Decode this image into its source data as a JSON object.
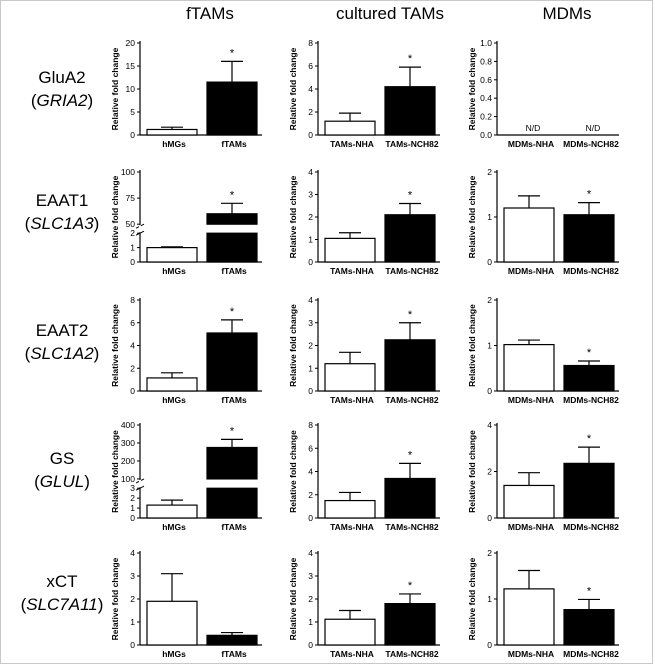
{
  "columns": [
    "fTAMs",
    "cultured TAMs",
    "MDMs"
  ],
  "rows": [
    {
      "name": "GluA2",
      "gene": "GRIA2"
    },
    {
      "name": "EAAT1",
      "gene": "SLC1A3"
    },
    {
      "name": "EAAT2",
      "gene": "SLC1A2"
    },
    {
      "name": "GS",
      "gene": "GLUL"
    },
    {
      "name": "xCT",
      "gene": "SLC7A11"
    }
  ],
  "chart_data": [
    {
      "type": "bar",
      "row": "GluA2",
      "column": "fTAMs",
      "ylabel": "Relative fold change",
      "categories": [
        "hMGs",
        "fTAMs"
      ],
      "values": [
        1.2,
        11.5
      ],
      "errors": [
        0.5,
        4.5
      ],
      "ylim": [
        0,
        20
      ],
      "yticks": [
        "0",
        "5",
        "10",
        "15",
        "20"
      ],
      "significance": [
        false,
        true
      ],
      "sig_label": "*"
    },
    {
      "type": "bar",
      "row": "GluA2",
      "column": "cultured TAMs",
      "ylabel": "Relative fold change",
      "categories": [
        "TAMs-NHA",
        "TAMs-NCH82"
      ],
      "values": [
        1.2,
        4.2
      ],
      "errors": [
        0.7,
        1.7
      ],
      "ylim": [
        0,
        8
      ],
      "yticks": [
        "0",
        "2",
        "4",
        "6",
        "8"
      ],
      "significance": [
        false,
        true
      ],
      "sig_label": "*"
    },
    {
      "type": "bar",
      "row": "GluA2",
      "column": "MDMs",
      "ylabel": "Relative fold change",
      "categories": [
        "MDMs-NHA",
        "MDMs-NCH82"
      ],
      "values": [
        0,
        0
      ],
      "errors": [
        0,
        0
      ],
      "ylim": [
        0,
        1
      ],
      "yticks": [
        "0.0",
        "0.2",
        "0.4",
        "0.6",
        "0.8",
        "1.0"
      ],
      "significance": [
        false,
        false
      ],
      "sig_label": "*",
      "bar_notes": [
        "N/D",
        "N/D"
      ]
    },
    {
      "type": "bar",
      "row": "EAAT1",
      "column": "fTAMs",
      "ylabel": "Relative fold change",
      "categories": [
        "hMGs",
        "fTAMs"
      ],
      "values": [
        1.0,
        60
      ],
      "errors": [
        0.05,
        10
      ],
      "broken_axis": true,
      "yticks_lower": [
        "0",
        "1",
        "2"
      ],
      "yticks_upper": [
        "50",
        "75",
        "100"
      ],
      "significance": [
        false,
        true
      ],
      "sig_label": "*"
    },
    {
      "type": "bar",
      "row": "EAAT1",
      "column": "cultured TAMs",
      "ylabel": "Relative fold change",
      "categories": [
        "TAMs-NHA",
        "TAMs-NCH82"
      ],
      "values": [
        1.05,
        2.1
      ],
      "errors": [
        0.25,
        0.5
      ],
      "ylim": [
        0,
        4
      ],
      "yticks": [
        "0",
        "1",
        "2",
        "3",
        "4"
      ],
      "significance": [
        false,
        true
      ],
      "sig_label": "*"
    },
    {
      "type": "bar",
      "row": "EAAT1",
      "column": "MDMs",
      "ylabel": "Relative fold change",
      "categories": [
        "MDMs-NHA",
        "MDMs-NCH82"
      ],
      "values": [
        1.2,
        1.05
      ],
      "errors": [
        0.27,
        0.27
      ],
      "ylim": [
        0,
        2
      ],
      "yticks": [
        "0",
        "1",
        "2"
      ],
      "significance": [
        false,
        true
      ],
      "sig_label": "*"
    },
    {
      "type": "bar",
      "row": "EAAT2",
      "column": "fTAMs",
      "ylabel": "Relative fold change",
      "categories": [
        "hMGs",
        "fTAMs"
      ],
      "values": [
        1.15,
        5.1
      ],
      "errors": [
        0.45,
        1.15
      ],
      "ylim": [
        0,
        8
      ],
      "yticks": [
        "0",
        "2",
        "4",
        "6",
        "8"
      ],
      "significance": [
        false,
        true
      ],
      "sig_label": "*"
    },
    {
      "type": "bar",
      "row": "EAAT2",
      "column": "cultured TAMs",
      "ylabel": "Relative fold change",
      "categories": [
        "TAMs-NHA",
        "TAMs-NCH82"
      ],
      "values": [
        1.2,
        2.25
      ],
      "errors": [
        0.5,
        0.75
      ],
      "ylim": [
        0,
        4
      ],
      "yticks": [
        "0",
        "1",
        "2",
        "3",
        "4"
      ],
      "significance": [
        false,
        true
      ],
      "sig_label": "*"
    },
    {
      "type": "bar",
      "row": "EAAT2",
      "column": "MDMs",
      "ylabel": "Relative fold change",
      "categories": [
        "MDMs-NHA",
        "MDMs-NCH82"
      ],
      "values": [
        1.02,
        0.56
      ],
      "errors": [
        0.1,
        0.1
      ],
      "ylim": [
        0,
        2
      ],
      "yticks": [
        "0",
        "1",
        "2"
      ],
      "significance": [
        false,
        true
      ],
      "sig_label": "*"
    },
    {
      "type": "bar",
      "row": "GS",
      "column": "fTAMs",
      "ylabel": "Relative fold change",
      "categories": [
        "hMGs",
        "fTAMs"
      ],
      "values": [
        1.3,
        275
      ],
      "errors": [
        0.5,
        45
      ],
      "broken_axis": true,
      "yticks_lower": [
        "0",
        "1",
        "2",
        "3"
      ],
      "yticks_upper": [
        "100",
        "200",
        "300",
        "400"
      ],
      "significance": [
        false,
        true
      ],
      "sig_label": "*"
    },
    {
      "type": "bar",
      "row": "GS",
      "column": "cultured TAMs",
      "ylabel": "Relative fold change",
      "categories": [
        "TAMs-NHA",
        "TAMs-NCH82"
      ],
      "values": [
        1.5,
        3.4
      ],
      "errors": [
        0.7,
        1.3
      ],
      "ylim": [
        0,
        8
      ],
      "yticks": [
        "0",
        "2",
        "4",
        "6",
        "8"
      ],
      "significance": [
        false,
        true
      ],
      "sig_label": "*"
    },
    {
      "type": "bar",
      "row": "GS",
      "column": "MDMs",
      "ylabel": "Relative fold change",
      "categories": [
        "MDMs-NHA",
        "MDMs-NCH82"
      ],
      "values": [
        1.4,
        2.35
      ],
      "errors": [
        0.55,
        0.7
      ],
      "ylim": [
        0,
        4
      ],
      "yticks": [
        "0",
        "2",
        "4"
      ],
      "significance": [
        false,
        true
      ],
      "sig_label": "*"
    },
    {
      "type": "bar",
      "row": "xCT",
      "column": "fTAMs",
      "ylabel": "Relative fold change",
      "categories": [
        "hMGs",
        "fTAMs"
      ],
      "values": [
        1.9,
        0.42
      ],
      "errors": [
        1.2,
        0.12
      ],
      "ylim": [
        0,
        4
      ],
      "yticks": [
        "0",
        "1",
        "2",
        "3",
        "4"
      ],
      "significance": [
        false,
        false
      ],
      "sig_label": "*"
    },
    {
      "type": "bar",
      "row": "xCT",
      "column": "cultured TAMs",
      "ylabel": "Relative fold change",
      "categories": [
        "TAMs-NHA",
        "TAMs-NCH82"
      ],
      "values": [
        1.12,
        1.8
      ],
      "errors": [
        0.38,
        0.42
      ],
      "ylim": [
        0,
        4
      ],
      "yticks": [
        "0",
        "1",
        "2",
        "3",
        "4"
      ],
      "significance": [
        false,
        true
      ],
      "sig_label": "*"
    },
    {
      "type": "bar",
      "row": "xCT",
      "column": "MDMs",
      "ylabel": "Relative fold change",
      "categories": [
        "MDMs-NHA",
        "MDMs-NCH82"
      ],
      "values": [
        1.22,
        0.77
      ],
      "errors": [
        0.4,
        0.22
      ],
      "ylim": [
        0,
        2
      ],
      "yticks": [
        "0",
        "1",
        "2"
      ],
      "significance": [
        false,
        true
      ],
      "sig_label": "*"
    }
  ]
}
